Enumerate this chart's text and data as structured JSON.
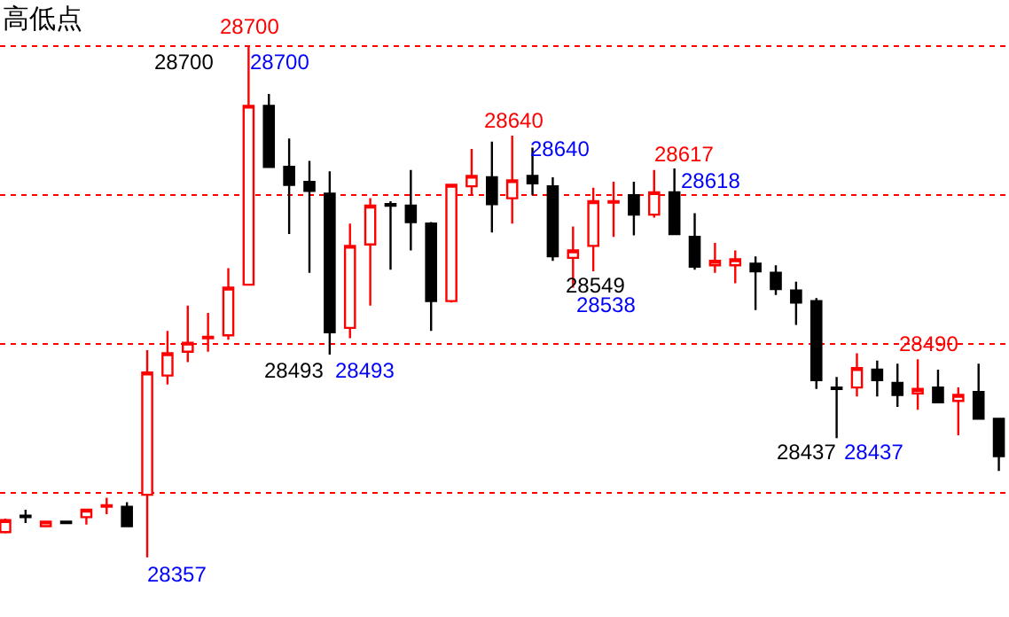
{
  "chart_data": {
    "type": "candlestick",
    "title": "高低点",
    "categories": [
      null,
      null,
      null,
      null,
      null,
      null,
      null,
      null,
      null,
      null,
      null,
      null,
      null,
      null,
      null,
      null,
      null,
      null,
      null,
      null,
      null,
      null,
      null,
      null,
      null,
      null,
      null,
      null,
      null,
      null,
      null,
      null,
      null,
      null,
      null,
      null,
      null,
      null,
      null,
      null,
      null,
      null,
      null,
      null,
      null,
      null,
      null,
      null,
      null,
      null
    ],
    "ohlc": [
      [
        28374,
        28383,
        28373,
        28382
      ],
      [
        28385,
        28389,
        28380,
        28384
      ],
      [
        28378,
        28381,
        28378,
        28381
      ],
      [
        28381,
        28381,
        28380,
        28380
      ],
      [
        28384,
        28389,
        28379,
        28389
      ],
      [
        28391,
        28397,
        28386,
        28392
      ],
      [
        28391,
        28394,
        28378,
        28378
      ],
      [
        28399,
        28496,
        28357,
        28481
      ],
      [
        28479,
        28509,
        28473,
        28494
      ],
      [
        28495,
        28526,
        28488,
        28501
      ],
      [
        28504,
        28521,
        28495,
        28505
      ],
      [
        28506,
        28551,
        28503,
        28538
      ],
      [
        28540,
        28700,
        28540,
        28660
      ],
      [
        28660,
        28668,
        28619,
        28619
      ],
      [
        28619,
        28638,
        28574,
        28607
      ],
      [
        28609,
        28623,
        28548,
        28603
      ],
      [
        28601,
        28616,
        28493,
        28508
      ],
      [
        28511,
        28581,
        28504,
        28566
      ],
      [
        28567,
        28598,
        28526,
        28593
      ],
      [
        28594,
        28596,
        28550,
        28593
      ],
      [
        28593,
        28617,
        28563,
        28582
      ],
      [
        28581,
        28582,
        28509,
        28529
      ],
      [
        28529,
        28607,
        28528,
        28607
      ],
      [
        28606,
        28631,
        28600,
        28613
      ],
      [
        28612,
        28636,
        28575,
        28594
      ],
      [
        28598,
        28640,
        28581,
        28610
      ],
      [
        28613,
        28632,
        28600,
        28608
      ],
      [
        28606,
        28612,
        28556,
        28559
      ],
      [
        28558,
        28579,
        28538,
        28563
      ],
      [
        28566,
        28605,
        28549,
        28596
      ],
      [
        28595,
        28609,
        28572,
        28596
      ],
      [
        28600,
        28609,
        28573,
        28587
      ],
      [
        28587,
        28617,
        28585,
        28602
      ],
      [
        28602,
        28618,
        28574,
        28574
      ],
      [
        28572,
        28588,
        28550,
        28552
      ],
      [
        28553,
        28568,
        28548,
        28556
      ],
      [
        28553,
        28563,
        28541,
        28557
      ],
      [
        28554,
        28559,
        28523,
        28549
      ],
      [
        28548,
        28553,
        28533,
        28537
      ],
      [
        28536,
        28542,
        28513,
        28528
      ],
      [
        28529,
        28531,
        28470,
        28476
      ],
      [
        28471,
        28478,
        28437,
        28470
      ],
      [
        28471,
        28494,
        28465,
        28484
      ],
      [
        28483,
        28489,
        28465,
        28476
      ],
      [
        28474,
        28487,
        28458,
        28466
      ],
      [
        28467,
        28490,
        28456,
        28470
      ],
      [
        28471,
        28483,
        28461,
        28461
      ],
      [
        28462,
        28471,
        28439,
        28466
      ],
      [
        28468,
        28487,
        28450,
        28450
      ],
      [
        28450,
        28450,
        28415,
        28425
      ]
    ],
    "colors": [
      "#ff0000",
      "#000000",
      "#ff0000",
      "#000000",
      "#ff0000",
      "#ff0000",
      "#000000",
      "#ff0000",
      "#ff0000",
      "#ff0000",
      "#ff0000",
      "#ff0000",
      "#ff0000",
      "#000000",
      "#000000",
      "#000000",
      "#000000",
      "#ff0000",
      "#ff0000",
      "#000000",
      "#000000",
      "#000000",
      "#ff0000",
      "#ff0000",
      "#000000",
      "#ff0000",
      "#000000",
      "#000000",
      "#ff0000",
      "#ff0000",
      "#ff0000",
      "#000000",
      "#ff0000",
      "#000000",
      "#000000",
      "#ff0000",
      "#ff0000",
      "#000000",
      "#000000",
      "#000000",
      "#000000",
      "#000000",
      "#ff0000",
      "#000000",
      "#000000",
      "#ff0000",
      "#000000",
      "#ff0000",
      "#000000",
      "#000000"
    ],
    "ylim": [
      28317,
      28731
    ],
    "yticks": [
      {
        "value": 28400,
        "label": null
      },
      {
        "value": 28500,
        "label": null
      },
      {
        "value": 28600,
        "label": null
      },
      {
        "value": 28700,
        "label": null
      }
    ],
    "grid": "y",
    "tick_labels": false,
    "annotations": [
      "28700",
      "28700",
      "28700",
      "28640",
      "28640",
      "28617",
      "28618",
      "28549",
      "28538",
      "28493",
      "28493",
      "28490",
      "28437",
      "28437",
      "28357"
    ]
  }
}
